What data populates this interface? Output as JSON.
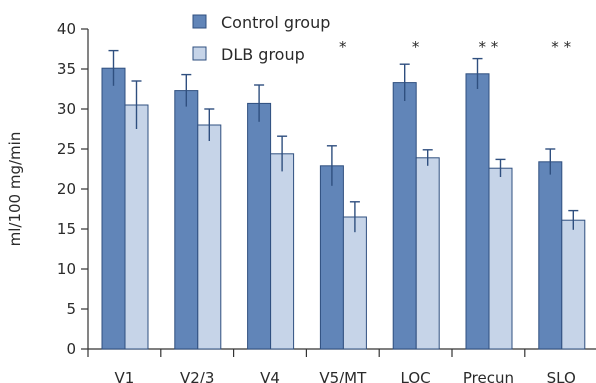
{
  "chart_data": {
    "type": "bar",
    "title": "",
    "xlabel": "",
    "ylabel": "ml/100 mg/min",
    "ylim": [
      0,
      40
    ],
    "yticks": [
      0,
      5,
      10,
      15,
      20,
      25,
      30,
      35,
      40
    ],
    "categories": [
      "V1",
      "V2/3",
      "V4",
      "V5/MT",
      "LOC",
      "Precun",
      "SLO"
    ],
    "series": [
      {
        "name": "Control group",
        "color": "#6185b8",
        "values": [
          35.1,
          32.3,
          30.7,
          22.9,
          33.3,
          34.4,
          23.4
        ],
        "errors": [
          2.2,
          2.0,
          2.3,
          2.5,
          2.3,
          1.9,
          1.6
        ]
      },
      {
        "name": "DLB group",
        "color": "#c6d4e8",
        "values": [
          30.5,
          28.0,
          24.4,
          16.5,
          23.9,
          22.6,
          16.1
        ],
        "errors": [
          3.0,
          2.0,
          2.2,
          1.9,
          1.0,
          1.1,
          1.2
        ]
      }
    ],
    "significance": [
      "",
      "",
      "",
      "*",
      "*",
      "* *",
      "* *"
    ],
    "grid": false,
    "legend_position": "top-center"
  }
}
